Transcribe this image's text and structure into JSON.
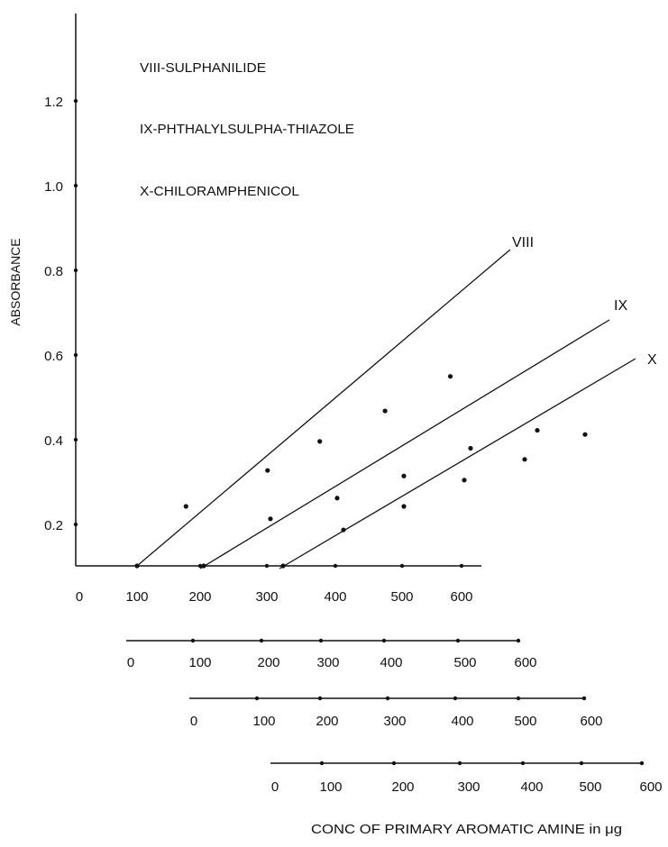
{
  "chart_data": {
    "type": "line",
    "ylabel": "ABSORBANCE",
    "xlabel": "CONC OF PRIMARY AROMATIC  AMINE in  μg",
    "legend": [
      "VIII-SULPHANILIDE",
      "IX-PHTHALYLSULPHA-THIAZOLE",
      "X-CHILORAMPHENICOL"
    ],
    "y_ticks": [
      "0.2",
      "0.4",
      "0.6",
      "0.8",
      "1.0",
      "1.2"
    ],
    "x_axes": [
      {
        "origin_label": "0",
        "labels": [
          "100",
          "200",
          "300",
          "400",
          "500",
          "600"
        ]
      },
      {
        "origin_label": "0",
        "labels": [
          "100",
          "200",
          "300",
          "400",
          "500",
          "600"
        ]
      },
      {
        "origin_label": "0",
        "labels": [
          "100",
          "200",
          "300",
          "400",
          "500",
          "600"
        ]
      },
      {
        "origin_label": "0",
        "labels": [
          "100",
          "200",
          "300",
          "400",
          "500",
          "600"
        ]
      }
    ],
    "series": [
      {
        "name": "VIII",
        "points": [
          {
            "x": 100,
            "y": 0.0
          },
          {
            "x": 175,
            "y": 0.215
          },
          {
            "x": 300,
            "y": 0.345
          },
          {
            "x": 380,
            "y": 0.45
          },
          {
            "x": 480,
            "y": 0.56
          },
          {
            "x": 580,
            "y": 0.685
          }
        ]
      },
      {
        "name": "IX",
        "points": [
          {
            "x": 0,
            "y": 0.0
          },
          {
            "x": 100,
            "y": 0.17
          },
          {
            "x": 200,
            "y": 0.245
          },
          {
            "x": 300,
            "y": 0.325
          },
          {
            "x": 400,
            "y": 0.425
          },
          {
            "x": 500,
            "y": 0.49
          }
        ]
      },
      {
        "name": "X",
        "points": [
          {
            "x": 0,
            "y": 0.0
          },
          {
            "x": 100,
            "y": 0.13
          },
          {
            "x": 200,
            "y": 0.215
          },
          {
            "x": 300,
            "y": 0.31
          },
          {
            "x": 400,
            "y": 0.385
          },
          {
            "x": 500,
            "y": 0.475
          }
        ]
      }
    ]
  }
}
